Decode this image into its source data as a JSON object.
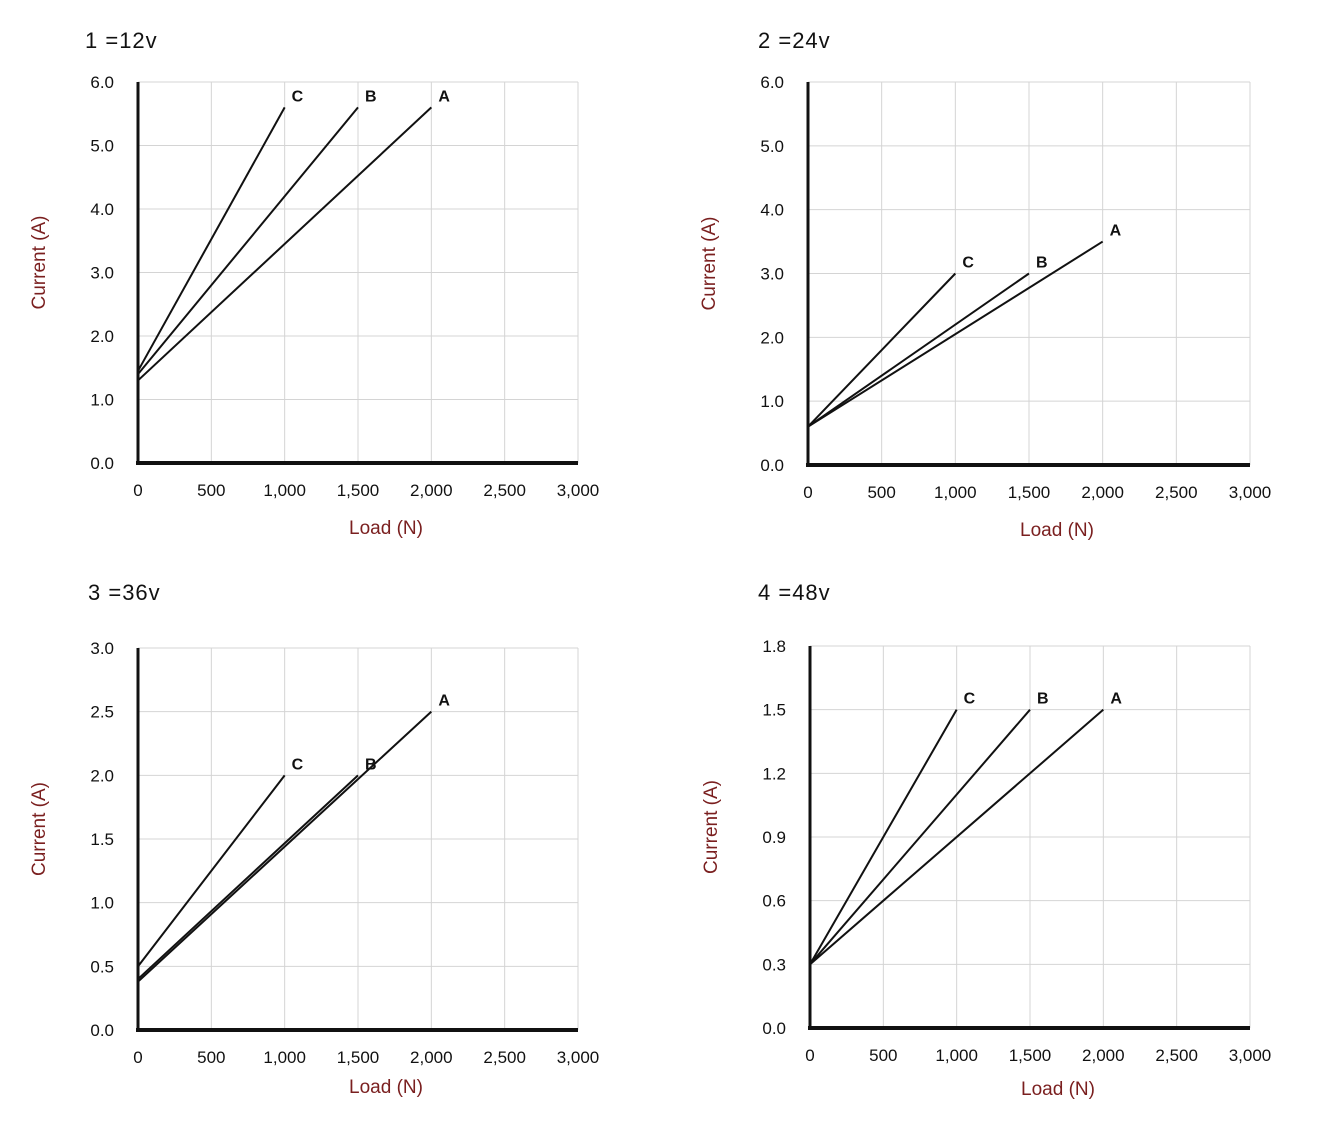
{
  "colors": {
    "axis_label": "#7a1f1f",
    "line": "#111111",
    "grid": "#d4d4d4",
    "axis": "#111111"
  },
  "chart_data": [
    {
      "type": "line",
      "title": "1 =12v",
      "xlabel": "Load (N)",
      "ylabel": "Current (A)",
      "xlim": [
        0,
        3000
      ],
      "ylim": [
        0,
        6.0
      ],
      "x_ticks": [
        "0",
        "500",
        "1,000",
        "1,500",
        "2,000",
        "2,500",
        "3,000"
      ],
      "y_ticks": [
        "0.0",
        "1.0",
        "2.0",
        "3.0",
        "4.0",
        "5.0",
        "6.0"
      ],
      "grid": true,
      "series": [
        {
          "name": "A",
          "x": [
            0,
            2000
          ],
          "y": [
            1.3,
            5.6
          ]
        },
        {
          "name": "B",
          "x": [
            0,
            1500
          ],
          "y": [
            1.4,
            5.6
          ]
        },
        {
          "name": "C",
          "x": [
            0,
            1000
          ],
          "y": [
            1.45,
            5.6
          ]
        }
      ]
    },
    {
      "type": "line",
      "title": "2 =24v",
      "xlabel": "Load (N)",
      "ylabel": "Current (A)",
      "xlim": [
        0,
        3000
      ],
      "ylim": [
        0,
        6.0
      ],
      "x_ticks": [
        "0",
        "500",
        "1,000",
        "1,500",
        "2,000",
        "2,500",
        "3,000"
      ],
      "y_ticks": [
        "0.0",
        "1.0",
        "2.0",
        "3.0",
        "4.0",
        "5.0",
        "6.0"
      ],
      "grid": true,
      "series": [
        {
          "name": "A",
          "x": [
            0,
            2000
          ],
          "y": [
            0.6,
            3.5
          ]
        },
        {
          "name": "B",
          "x": [
            0,
            1500
          ],
          "y": [
            0.6,
            3.0
          ]
        },
        {
          "name": "C",
          "x": [
            0,
            1000
          ],
          "y": [
            0.6,
            3.0
          ]
        }
      ]
    },
    {
      "type": "line",
      "title": "3 =36v",
      "xlabel": "Load (N)",
      "ylabel": "Current (A)",
      "xlim": [
        0,
        3000
      ],
      "ylim": [
        0,
        3.0
      ],
      "x_ticks": [
        "0",
        "500",
        "1,000",
        "1,500",
        "2,000",
        "2,500",
        "3,000"
      ],
      "y_ticks": [
        "0.0",
        "0.5",
        "1.0",
        "1.5",
        "2.0",
        "2.5",
        "3.0"
      ],
      "grid": true,
      "series": [
        {
          "name": "A",
          "x": [
            0,
            2000
          ],
          "y": [
            0.38,
            2.5
          ]
        },
        {
          "name": "B",
          "x": [
            0,
            1500
          ],
          "y": [
            0.4,
            2.0
          ]
        },
        {
          "name": "C",
          "x": [
            0,
            1000
          ],
          "y": [
            0.5,
            2.0
          ]
        }
      ]
    },
    {
      "type": "line",
      "title": "4 =48v",
      "xlabel": "Load (N)",
      "ylabel": "Current (A)",
      "xlim": [
        0,
        3000
      ],
      "ylim": [
        0,
        1.8
      ],
      "x_ticks": [
        "0",
        "500",
        "1,000",
        "1,500",
        "2,000",
        "2,500",
        "3,000"
      ],
      "y_ticks": [
        "0.0",
        "0.3",
        "0.6",
        "0.9",
        "1.2",
        "1.5",
        "1.8"
      ],
      "grid": true,
      "series": [
        {
          "name": "A",
          "x": [
            0,
            2000
          ],
          "y": [
            0.3,
            1.5
          ]
        },
        {
          "name": "B",
          "x": [
            0,
            1500
          ],
          "y": [
            0.3,
            1.5
          ]
        },
        {
          "name": "C",
          "x": [
            0,
            1000
          ],
          "y": [
            0.3,
            1.5
          ]
        }
      ]
    }
  ]
}
